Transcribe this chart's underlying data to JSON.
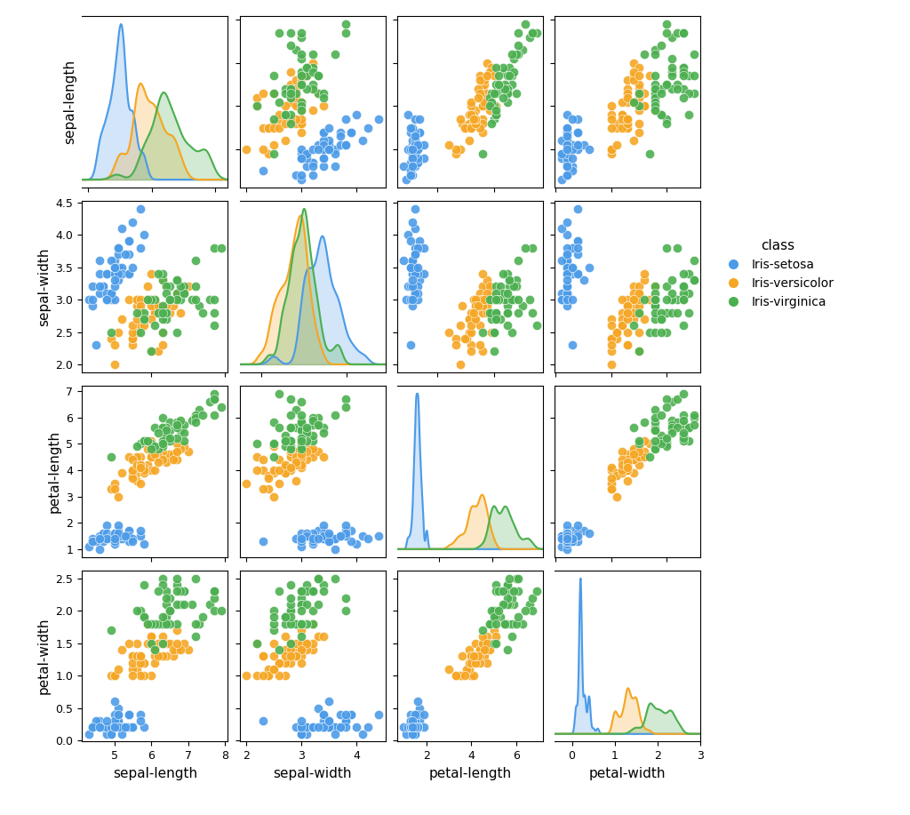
{
  "features": [
    "sepal-length",
    "sepal-width",
    "petal-length",
    "petal-width"
  ],
  "classes": [
    "Iris-setosa",
    "Iris-versicolor",
    "Iris-virginica"
  ],
  "colors": [
    "#4C9BE8",
    "#F5A623",
    "#4CAF50"
  ],
  "scatter_alpha": 0.9,
  "kde_alpha": 0.25,
  "scatter_size": 55,
  "figsize": [
    10.24,
    9.17
  ],
  "dpi": 100,
  "legend_title": "class",
  "kde_bw": 0.3
}
